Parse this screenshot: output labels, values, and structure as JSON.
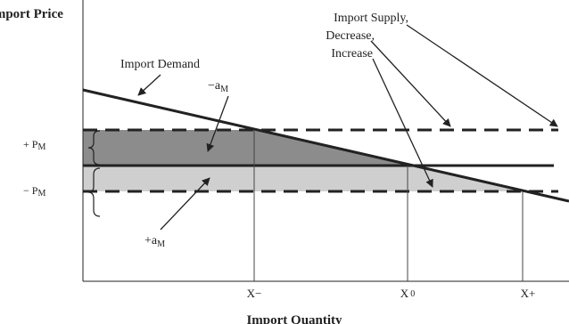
{
  "axes": {
    "y_label": "Import Price",
    "x_label": "Import Quantity"
  },
  "labels": {
    "import_demand": "Import Demand",
    "minus_a": {
      "base": "−a",
      "sub": "M"
    },
    "plus_a": {
      "base": "+a",
      "sub": "M"
    },
    "plus_p": {
      "base": "+  P",
      "sub": "M"
    },
    "minus_p": {
      "base": "−  P",
      "sub": "M"
    },
    "import_supply": [
      "Import Supply,",
      "Decrease,",
      "Increase"
    ]
  },
  "x_marks": {
    "x_minus": "X−",
    "x0": {
      "base": "X",
      "sub": "0"
    },
    "x_plus": "X+"
  }
}
